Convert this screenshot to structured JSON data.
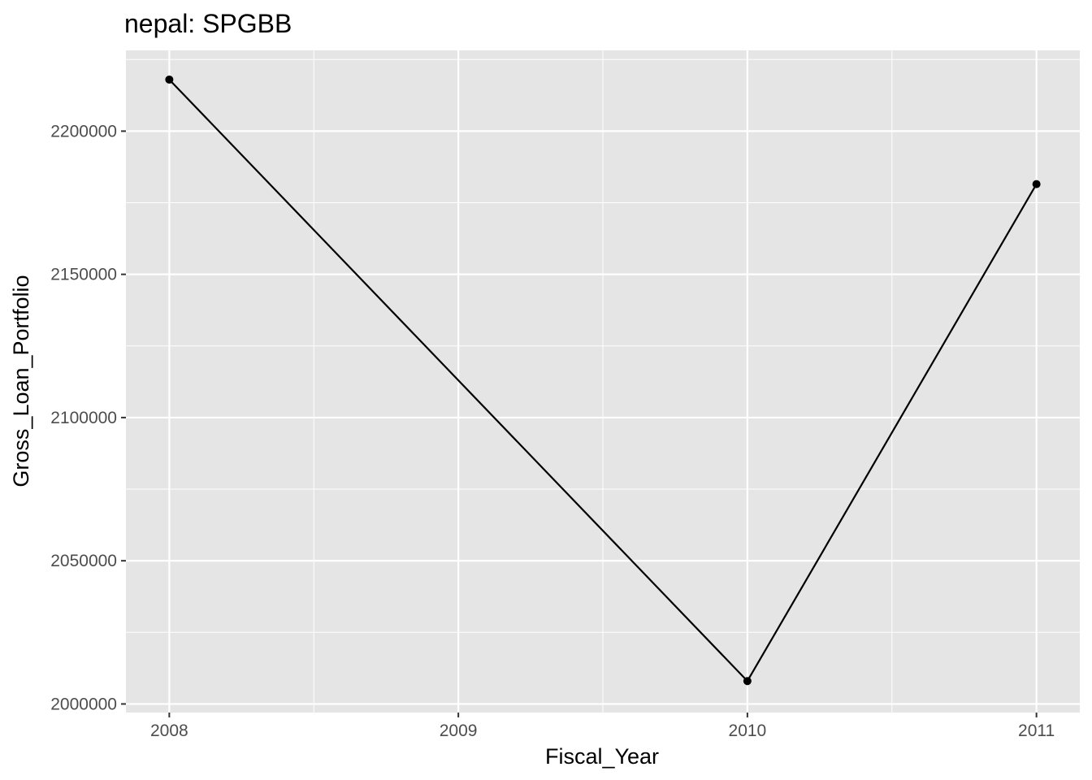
{
  "chart_data": {
    "type": "line",
    "title": "nepal:  SPGBB",
    "xlabel": "Fiscal_Year",
    "ylabel": "Gross_Loan_Portfolio",
    "x": [
      2008,
      2010,
      2011
    ],
    "y": [
      2218000,
      2008000,
      2181500
    ],
    "xlim": [
      2007.85,
      2011.15
    ],
    "ylim": [
      1997000,
      2228200
    ],
    "x_ticks": [
      2008,
      2009,
      2010,
      2011
    ],
    "y_ticks": [
      2000000,
      2050000,
      2100000,
      2150000,
      2200000
    ],
    "grid": true,
    "legend": "none",
    "colors": {
      "panel": "#e5e5e5",
      "grid": "#ffffff",
      "line": "#000000",
      "tick_text": "#4d4d4d"
    }
  }
}
